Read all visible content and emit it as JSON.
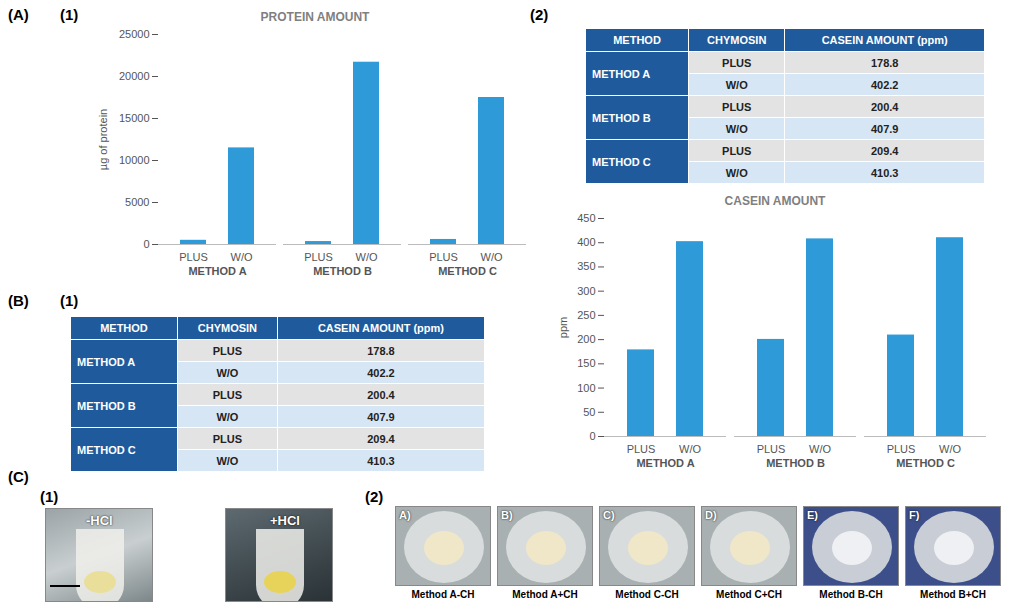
{
  "chart_data": [
    {
      "type": "bar",
      "title": "PROTEIN AMOUNT",
      "y_label": "µg of protein",
      "categories": [
        "PLUS",
        "W/O",
        "PLUS",
        "W/O",
        "PLUS",
        "W/O"
      ],
      "groups": [
        "METHOD A",
        "METHOD A",
        "METHOD B",
        "METHOD B",
        "METHOD C",
        "METHOD C"
      ],
      "values": [
        500,
        11500,
        350,
        21700,
        600,
        17500
      ],
      "color": "#2e9bd8",
      "ylim": [
        0,
        25000
      ],
      "yticks": [
        0,
        5000,
        10000,
        15000,
        20000,
        25000
      ],
      "grid": false
    },
    {
      "type": "bar",
      "title": "CASEIN AMOUNT",
      "y_label": "ppm",
      "categories": [
        "PLUS",
        "W/O",
        "PLUS",
        "W/O",
        "PLUS",
        "W/O"
      ],
      "groups": [
        "METHOD A",
        "METHOD A",
        "METHOD B",
        "METHOD B",
        "METHOD C",
        "METHOD C"
      ],
      "values": [
        178.8,
        402.2,
        200.4,
        407.9,
        209.4,
        410.3
      ],
      "color": "#2e9bd8",
      "ylim": [
        0,
        450
      ],
      "yticks": [
        0,
        50,
        100,
        150,
        200,
        250,
        300,
        350,
        400,
        450
      ],
      "grid": false
    }
  ],
  "tables": [
    {
      "header": [
        "METHOD",
        "CHYMOSIN",
        "CASEIN AMOUNT (ppm)"
      ],
      "rows": [
        {
          "method": "METHOD A",
          "entries": [
            [
              "PLUS",
              "178.8"
            ],
            [
              "W/O",
              "402.2"
            ]
          ]
        },
        {
          "method": "METHOD B",
          "entries": [
            [
              "PLUS",
              "200.4"
            ],
            [
              "W/O",
              "407.9"
            ]
          ]
        },
        {
          "method": "METHOD C",
          "entries": [
            [
              "PLUS",
              "209.4"
            ],
            [
              "W/O",
              "410.3"
            ]
          ]
        }
      ]
    },
    {
      "header": [
        "METHOD",
        "CHYMOSIN",
        "CASEIN AMOUNT (ppm)"
      ],
      "rows": [
        {
          "method": "METHOD A",
          "entries": [
            [
              "PLUS",
              "178.8"
            ],
            [
              "W/O",
              "402.2"
            ]
          ]
        },
        {
          "method": "METHOD B",
          "entries": [
            [
              "PLUS",
              "200.4"
            ],
            [
              "W/O",
              "407.9"
            ]
          ]
        },
        {
          "method": "METHOD C",
          "entries": [
            [
              "PLUS",
              "209.4"
            ],
            [
              "W/O",
              "410.3"
            ]
          ]
        }
      ]
    }
  ],
  "photos": {
    "c1": [
      {
        "label": "-HCl"
      },
      {
        "label": "+HCl"
      }
    ],
    "c2": [
      {
        "label": "A)",
        "caption": "Method A-CH"
      },
      {
        "label": "B)",
        "caption": "Method A+CH"
      },
      {
        "label": "C)",
        "caption": "Method C-CH"
      },
      {
        "label": "D)",
        "caption": "Method C+CH"
      },
      {
        "label": "E)",
        "caption": "Method B-CH"
      },
      {
        "label": "F)",
        "caption": "Method B+CH"
      }
    ]
  },
  "panel_labels": {
    "A": "(A)",
    "A1": "(1)",
    "A2": "(2)",
    "B": "(B)",
    "B1": "(1)",
    "C": "(C)",
    "C1": "(1)",
    "C2": "(2)"
  }
}
